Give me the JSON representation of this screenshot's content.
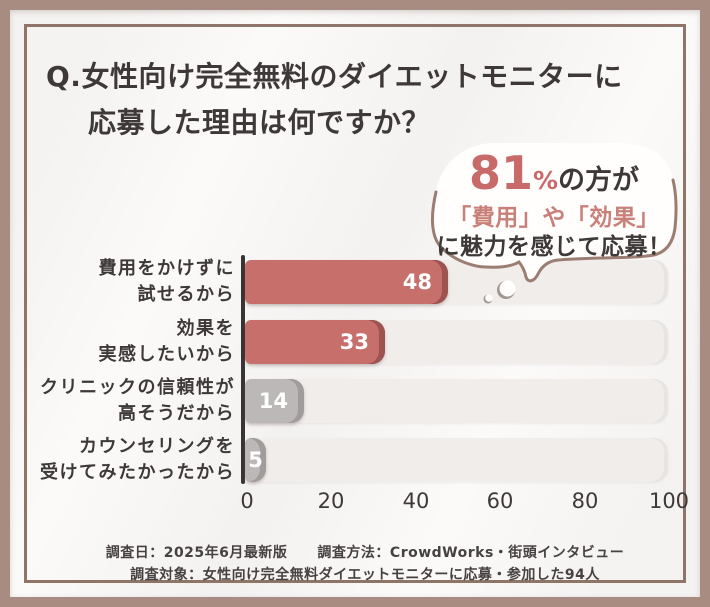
{
  "page": {
    "background_color": "#a98c81",
    "card_border_color": "#8f7568"
  },
  "title": {
    "line1": "Q.女性向け完全無料のダイエットモニターに",
    "line2": "応募した理由は何ですか？"
  },
  "bubble": {
    "stat_value": "81",
    "percent_sign": "%",
    "stat_suffix": "の方が",
    "line2": "「費用」や「効果」",
    "line3": "に魅力を感じて応募！",
    "accent_color": "#c96a6a",
    "pink_text_color": "#c98079",
    "border_color": "#9b7d72"
  },
  "chart_data": {
    "type": "bar",
    "orientation": "horizontal",
    "title": "Q.女性向け完全無料のダイエットモニターに応募した理由は何ですか？",
    "categories": [
      "費用をかけずに試せるから",
      "効果を実感したいから",
      "クリニックの信頼性が高そうだから",
      "カウンセリングを受けてみたかったから"
    ],
    "category_lines": [
      [
        "費用をかけずに",
        "試せるから"
      ],
      [
        "効果を",
        "実感したいから"
      ],
      [
        "クリニックの信頼性が",
        "高そうだから"
      ],
      [
        "カウンセリングを",
        "受けてみたかったから"
      ]
    ],
    "values": [
      48,
      33,
      14,
      5
    ],
    "bar_colors": [
      "#c76f6b",
      "#c76f6b",
      "#bcb8b8",
      "#bcb8b8"
    ],
    "bar_rim_colors": [
      "#9d5350",
      "#9d5350",
      "#a09c9c",
      "#a09c9c"
    ],
    "track_color": "#f0edeb",
    "x_ticks": [
      "0",
      "20",
      "40",
      "60",
      "80",
      "100"
    ],
    "xlim": [
      0,
      100
    ],
    "grid": false,
    "legend": false,
    "annotation": "81%の方が「費用」や「効果」に魅力を感じて応募！"
  },
  "footer": {
    "line1_left": "調査日：2025年6月最新版",
    "line1_right": "調査方法：CrowdWorks・街頭インタビュー",
    "line2": "調査対象：女性向け完全無料ダイエットモニターに応募・参加した94人"
  }
}
